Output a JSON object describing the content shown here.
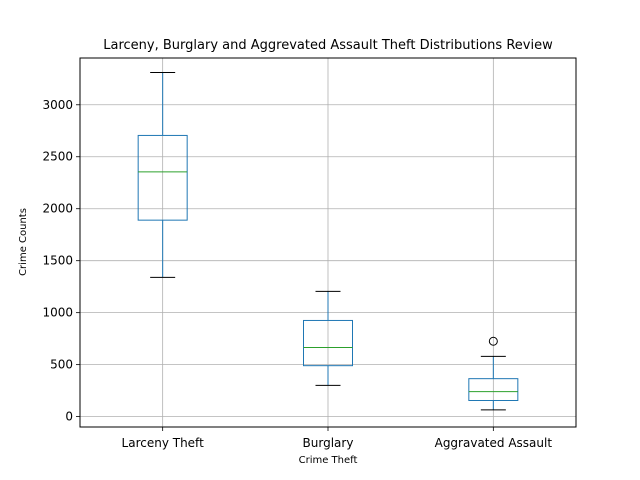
{
  "chart_data": {
    "type": "boxplot",
    "title": "Larceny, Burglary and Aggrevated Assault Theft Distributions Review",
    "xlabel": "Crime Theft",
    "ylabel": "Crime Counts",
    "ylim": [
      -100,
      3450
    ],
    "yticks": [
      0,
      500,
      1000,
      1500,
      2000,
      2500,
      3000
    ],
    "grid": true,
    "categories": [
      "Larceny Theft",
      "Burglary",
      "Aggravated Assault"
    ],
    "boxes": [
      {
        "name": "Larceny Theft",
        "whisker_low": 1340,
        "q1": 1890,
        "median": 2355,
        "q3": 2705,
        "whisker_high": 3310,
        "outliers": []
      },
      {
        "name": "Burglary",
        "whisker_low": 300,
        "q1": 490,
        "median": 665,
        "q3": 925,
        "whisker_high": 1205,
        "outliers": []
      },
      {
        "name": "Aggravated Assault",
        "whisker_low": 65,
        "q1": 155,
        "median": 240,
        "q3": 365,
        "whisker_high": 580,
        "outliers": [
          725
        ]
      }
    ],
    "colors": {
      "box": "#1f77b4",
      "median": "#2ca02c",
      "whisker_cap": "#000000",
      "grid": "#b0b0b0"
    }
  }
}
